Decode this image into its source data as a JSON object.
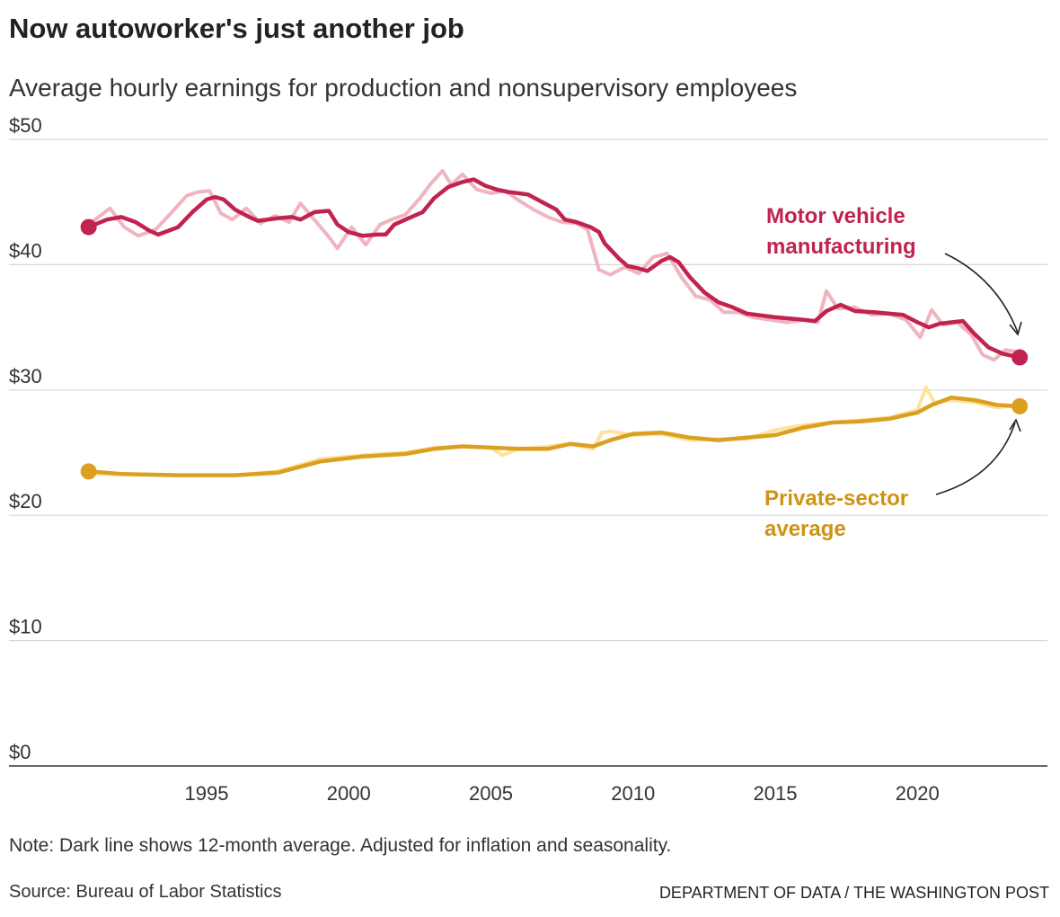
{
  "title": "Now autoworker's just another job",
  "subtitle": "Average hourly earnings for production and nonsupervisory employees",
  "note": "Note: Dark line shows 12-month average. Adjusted for inflation and seasonality.",
  "source": "Source: Bureau of Labor Statistics",
  "credit": "Department of Data / The Washington Post",
  "chart_data": {
    "type": "line",
    "title": "Now autoworker's just another job",
    "subtitle": "Average hourly earnings for production and nonsupervisory employees",
    "xlabel": "",
    "ylabel": "",
    "xlim": [
      1990.8,
      2023.9
    ],
    "ylim": [
      0,
      50
    ],
    "x_ticks": [
      1995,
      2000,
      2005,
      2010,
      2015,
      2020
    ],
    "y_ticks": [
      0,
      10,
      20,
      30,
      40,
      50
    ],
    "y_tick_labels": [
      "$0",
      "$10",
      "$20",
      "$30",
      "$40",
      "$50"
    ],
    "grid": "horizontal",
    "legend": "direct labels",
    "series": [
      {
        "name": "Motor vehicle manufacturing",
        "color": "#c1234f",
        "light_color": "#f0b4c1",
        "avg_x": [
          1990.85,
          1991.5,
          1992,
          1992.5,
          1993,
          1993.3,
          1994,
          1994.5,
          1995,
          1995.3,
          1995.6,
          1996,
          1996.5,
          1996.8,
          1997.5,
          1998,
          1998.3,
          1998.8,
          1999.3,
          1999.6,
          2000,
          2000.5,
          2001,
          2001.3,
          2001.6,
          2002,
          2002.6,
          2003,
          2003.5,
          2004,
          2004.4,
          2004.8,
          2005.2,
          2005.6,
          2006.3,
          2006.8,
          2007.3,
          2007.6,
          2008,
          2008.5,
          2008.8,
          2009,
          2009.5,
          2009.8,
          2010.2,
          2010.5,
          2011,
          2011.3,
          2011.6,
          2012,
          2012.5,
          2013,
          2013.5,
          2014,
          2015,
          2016,
          2016.4,
          2016.8,
          2017.3,
          2017.8,
          2018.5,
          2019.5,
          2020,
          2020.4,
          2020.8,
          2021.6,
          2022,
          2022.5,
          2023,
          2023.6
        ],
        "avg_y": [
          43.0,
          43.6,
          43.8,
          43.4,
          42.7,
          42.4,
          43.0,
          44.2,
          45.2,
          45.4,
          45.2,
          44.4,
          43.8,
          43.5,
          43.7,
          43.8,
          43.6,
          44.2,
          44.3,
          43.2,
          42.6,
          42.3,
          42.4,
          42.4,
          43.2,
          43.6,
          44.2,
          45.3,
          46.2,
          46.6,
          46.8,
          46.3,
          46.0,
          45.8,
          45.6,
          45.0,
          44.4,
          43.6,
          43.4,
          43.0,
          42.6,
          41.7,
          40.5,
          39.9,
          39.7,
          39.5,
          40.3,
          40.6,
          40.2,
          39.0,
          37.8,
          37.0,
          36.6,
          36.1,
          35.8,
          35.6,
          35.5,
          36.3,
          36.8,
          36.3,
          36.2,
          36.0,
          35.4,
          35.0,
          35.3,
          35.5,
          34.5,
          33.4,
          32.9,
          32.6
        ],
        "raw_x": [
          1990.85,
          1991.2,
          1991.6,
          1992.1,
          1992.6,
          1993.2,
          1993.7,
          1994.3,
          1994.7,
          1995.1,
          1995.5,
          1995.9,
          1996.4,
          1996.9,
          1997.4,
          1997.9,
          1998.3,
          1998.9,
          1999.3,
          1999.6,
          2000.1,
          2000.6,
          2001.1,
          2001.5,
          2002.0,
          2002.5,
          2002.9,
          2003.3,
          2003.6,
          2004.0,
          2004.5,
          2005.0,
          2005.5,
          2006.0,
          2006.5,
          2007.0,
          2007.5,
          2008.0,
          2008.4,
          2008.8,
          2009.2,
          2009.7,
          2010.2,
          2010.7,
          2011.2,
          2011.7,
          2012.2,
          2012.7,
          2013.2,
          2013.7,
          2014.2,
          2014.8,
          2015.4,
          2016.0,
          2016.5,
          2016.8,
          2017.2,
          2017.8,
          2018.4,
          2019.0,
          2019.6,
          2020.1,
          2020.5,
          2020.9,
          2021.4,
          2021.9,
          2022.3,
          2022.7,
          2023.1,
          2023.6
        ],
        "raw_y": [
          43.2,
          43.8,
          44.5,
          43.0,
          42.3,
          42.8,
          44.0,
          45.5,
          45.8,
          45.9,
          44.1,
          43.6,
          44.5,
          43.3,
          43.9,
          43.4,
          44.9,
          43.3,
          42.2,
          41.3,
          43.0,
          41.6,
          43.2,
          43.6,
          44.0,
          45.3,
          46.5,
          47.5,
          46.4,
          47.2,
          46.0,
          45.7,
          45.9,
          45.1,
          44.4,
          43.8,
          43.4,
          43.3,
          42.8,
          39.6,
          39.2,
          39.8,
          39.3,
          40.6,
          40.9,
          39.0,
          37.5,
          37.2,
          36.2,
          36.2,
          35.8,
          35.6,
          35.4,
          35.6,
          35.4,
          37.9,
          36.5,
          36.6,
          36.0,
          36.1,
          35.6,
          34.2,
          36.4,
          35.2,
          35.4,
          34.4,
          32.8,
          32.4,
          33.2,
          33.0
        ]
      },
      {
        "name": "Private-sector average",
        "color": "#dba021",
        "light_color": "#fde39e",
        "avg_x": [
          1990.85,
          1992,
          1994,
          1996,
          1997.5,
          1999,
          2000.5,
          2002,
          2003,
          2004,
          2005,
          2006,
          2007,
          2007.8,
          2008.6,
          2009.2,
          2010,
          2011,
          2012,
          2013,
          2014,
          2015,
          2016,
          2017,
          2018,
          2019,
          2020,
          2020.5,
          2021.2,
          2022,
          2022.8,
          2023.6
        ],
        "avg_y": [
          23.5,
          23.3,
          23.2,
          23.2,
          23.4,
          24.3,
          24.7,
          24.9,
          25.3,
          25.5,
          25.4,
          25.3,
          25.3,
          25.7,
          25.5,
          26.0,
          26.5,
          26.6,
          26.2,
          26.0,
          26.2,
          26.4,
          27.0,
          27.4,
          27.5,
          27.7,
          28.2,
          28.8,
          29.4,
          29.2,
          28.8,
          28.7
        ],
        "raw_x": [
          1990.85,
          1992,
          1994,
          1996,
          1997.5,
          1999,
          2000.5,
          2002,
          2003,
          2004,
          2005,
          2005.4,
          2006,
          2007,
          2007.8,
          2008.6,
          2008.9,
          2009.2,
          2010,
          2011,
          2012,
          2013,
          2014,
          2015,
          2016,
          2017,
          2018,
          2019,
          2020,
          2020.3,
          2020.6,
          2021.2,
          2022,
          2022.8,
          2023.6
        ],
        "raw_y": [
          23.3,
          23.3,
          23.2,
          23.2,
          23.5,
          24.5,
          24.8,
          25.0,
          25.4,
          25.5,
          25.4,
          24.8,
          25.3,
          25.5,
          25.7,
          25.3,
          26.6,
          26.7,
          26.4,
          26.5,
          26.0,
          26.1,
          26.1,
          26.8,
          27.2,
          27.4,
          27.6,
          27.8,
          28.4,
          30.2,
          29.0,
          29.2,
          29.0,
          28.6,
          28.8
        ]
      }
    ],
    "annotations": [
      "Motor vehicle manufacturing",
      "Private-sector average"
    ]
  }
}
